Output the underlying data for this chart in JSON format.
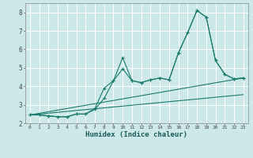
{
  "xlabel": "Humidex (Indice chaleur)",
  "xlim": [
    -0.5,
    23.5
  ],
  "ylim": [
    2.0,
    8.5
  ],
  "yticks": [
    2,
    3,
    4,
    5,
    6,
    7,
    8
  ],
  "xticks": [
    0,
    1,
    2,
    3,
    4,
    5,
    6,
    7,
    8,
    9,
    10,
    11,
    12,
    13,
    14,
    15,
    16,
    17,
    18,
    19,
    20,
    21,
    22,
    23
  ],
  "bg_color": "#cce8e8",
  "grid_color": "#b0d8d8",
  "line_color": "#1a7a6e",
  "lines": [
    {
      "x": [
        0,
        1,
        2,
        3,
        4,
        5,
        6,
        7,
        8,
        9,
        10,
        11,
        12,
        13,
        14,
        15,
        16,
        17,
        18,
        19,
        20,
        21,
        22,
        23
      ],
      "y": [
        2.45,
        2.45,
        2.4,
        2.35,
        2.35,
        2.5,
        2.5,
        2.8,
        3.9,
        4.3,
        5.55,
        4.3,
        4.2,
        4.35,
        4.45,
        4.35,
        5.8,
        6.9,
        8.1,
        7.75,
        5.4,
        4.65,
        4.4,
        4.45
      ],
      "marker": true
    },
    {
      "x": [
        0,
        1,
        2,
        3,
        4,
        5,
        6,
        7,
        8,
        9,
        10,
        11,
        12,
        13,
        14,
        15,
        16,
        17,
        18,
        19,
        20,
        21,
        22,
        23
      ],
      "y": [
        2.45,
        2.45,
        2.4,
        2.35,
        2.35,
        2.5,
        2.5,
        2.75,
        3.35,
        4.3,
        4.95,
        4.3,
        4.2,
        4.35,
        4.45,
        4.35,
        5.8,
        6.9,
        8.1,
        7.75,
        5.4,
        4.65,
        4.4,
        4.45
      ],
      "marker": true
    },
    {
      "x": [
        0,
        23
      ],
      "y": [
        2.45,
        4.45
      ],
      "marker": false
    },
    {
      "x": [
        0,
        23
      ],
      "y": [
        2.45,
        3.55
      ],
      "marker": false
    }
  ]
}
